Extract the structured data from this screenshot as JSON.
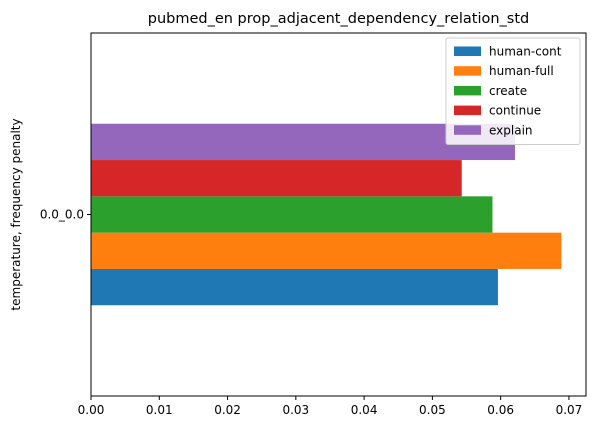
{
  "chart_data": {
    "type": "bar",
    "orientation": "horizontal",
    "title": "pubmed_en prop_adjacent_dependency_relation_std",
    "xlabel": "",
    "ylabel": "temperature, frequency penalty",
    "categories": [
      "0.0_0.0"
    ],
    "xlim": [
      0,
      0.0725
    ],
    "xticks": [
      0.0,
      0.01,
      0.02,
      0.03,
      0.04,
      0.05,
      0.06,
      0.07
    ],
    "xtick_labels": [
      "0.00",
      "0.01",
      "0.02",
      "0.03",
      "0.04",
      "0.05",
      "0.06",
      "0.07"
    ],
    "series": [
      {
        "name": "human-cont",
        "color": "#1f77b4",
        "values": [
          0.0596
        ]
      },
      {
        "name": "human-full",
        "color": "#ff7f0e",
        "values": [
          0.0689
        ]
      },
      {
        "name": "create",
        "color": "#2ca02c",
        "values": [
          0.0588
        ]
      },
      {
        "name": "continue",
        "color": "#d62728",
        "values": [
          0.0543
        ]
      },
      {
        "name": "explain",
        "color": "#9467bd",
        "values": [
          0.0621
        ]
      }
    ],
    "legend_position": "top-right",
    "grid": false
  }
}
